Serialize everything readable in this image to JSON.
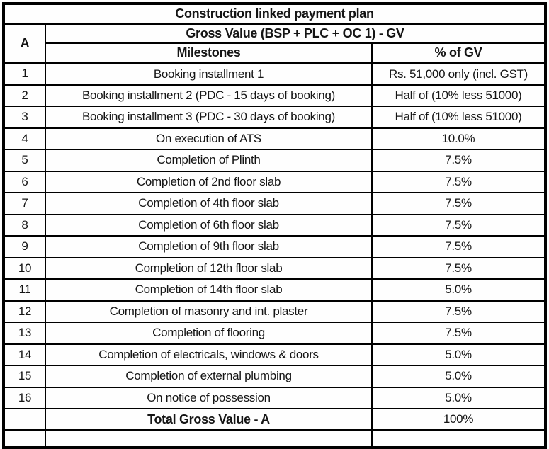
{
  "table": {
    "title": "Construction linked payment plan",
    "section_label": "A",
    "section_header": "Gross Value (BSP + PLC + OC 1) - GV",
    "columns": {
      "milestone": "Milestones",
      "value": "% of GV"
    },
    "rows": [
      {
        "sno": "1",
        "milestone": "Booking installment 1",
        "value": "Rs. 51,000 only (incl. GST)"
      },
      {
        "sno": "2",
        "milestone": "Booking installment 2 (PDC - 15 days of booking)",
        "value": "Half of (10% less 51000)"
      },
      {
        "sno": "3",
        "milestone": "Booking installment 3 (PDC - 30 days of booking)",
        "value": "Half of (10% less 51000)"
      },
      {
        "sno": "4",
        "milestone": "On execution of ATS",
        "value": "10.0%"
      },
      {
        "sno": "5",
        "milestone": "Completion of Plinth",
        "value": "7.5%"
      },
      {
        "sno": "6",
        "milestone": "Completion of 2nd floor slab",
        "value": "7.5%"
      },
      {
        "sno": "7",
        "milestone": "Completion of 4th floor slab",
        "value": "7.5%"
      },
      {
        "sno": "8",
        "milestone": "Completion of 6th floor slab",
        "value": "7.5%"
      },
      {
        "sno": "9",
        "milestone": "Completion of 9th floor slab",
        "value": "7.5%"
      },
      {
        "sno": "10",
        "milestone": "Completion of 12th floor slab",
        "value": "7.5%"
      },
      {
        "sno": "11",
        "milestone": "Completion of 14th floor slab",
        "value": "5.0%"
      },
      {
        "sno": "12",
        "milestone": "Completion of masonry and int. plaster",
        "value": "7.5%"
      },
      {
        "sno": "13",
        "milestone": "Completion of flooring",
        "value": "7.5%"
      },
      {
        "sno": "14",
        "milestone": "Completion of electricals, windows & doors",
        "value": "5.0%"
      },
      {
        "sno": "15",
        "milestone": "Completion of external plumbing",
        "value": "5.0%"
      },
      {
        "sno": "16",
        "milestone": "On notice of possession",
        "value": "5.0%"
      }
    ],
    "total": {
      "label": "Total Gross Value - A",
      "value": "100%"
    }
  },
  "colors": {
    "border": "#000000",
    "background": "#fdfdfd",
    "text": "#151515"
  }
}
